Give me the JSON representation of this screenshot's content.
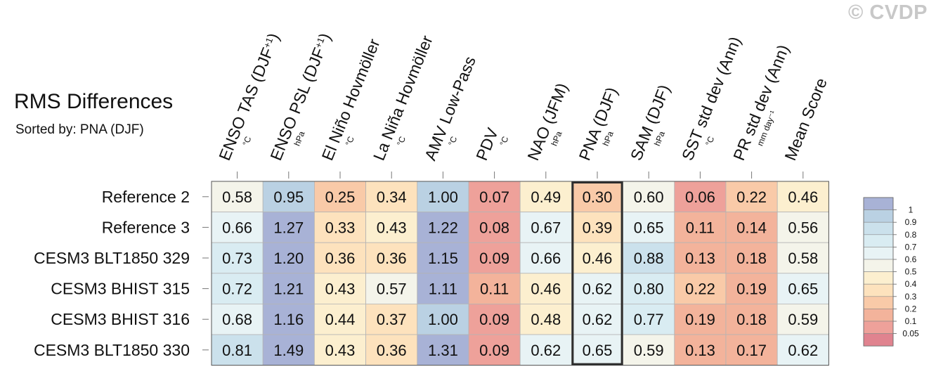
{
  "watermark": "© CVDP",
  "chart_data": {
    "type": "heatmap",
    "title": "RMS Differences",
    "subtitle": "Sorted by: PNA (DJF)",
    "columns": [
      {
        "label": "ENSO TAS (DJF",
        "sup": "+1",
        "after": ")",
        "unit": "°C"
      },
      {
        "label": "ENSO PSL (DJF",
        "sup": "+1",
        "after": ")",
        "unit": "hPa"
      },
      {
        "label": "El Niño Hovmöller",
        "sup": "",
        "after": "",
        "unit": "°C"
      },
      {
        "label": "La Niña Hovmöller",
        "sup": "",
        "after": "",
        "unit": "°C"
      },
      {
        "label": "AMV Low-Pass",
        "sup": "",
        "after": "",
        "unit": "°C"
      },
      {
        "label": "PDV",
        "sup": "",
        "after": "",
        "unit": "°C"
      },
      {
        "label": "NAO (JFM)",
        "sup": "",
        "after": "",
        "unit": "hPa"
      },
      {
        "label": "PNA (DJF)",
        "sup": "",
        "after": "",
        "unit": "hPa"
      },
      {
        "label": "SAM (DJF)",
        "sup": "",
        "after": "",
        "unit": "hPa"
      },
      {
        "label": "SST std dev (Ann)",
        "sup": "",
        "after": "",
        "unit": "°C"
      },
      {
        "label": "PR std dev (Ann)",
        "sup": "",
        "after": "",
        "unit": "mm day⁻¹"
      },
      {
        "label": "Mean Score",
        "sup": "",
        "after": "",
        "unit": ""
      }
    ],
    "rows": [
      "Reference 2",
      "Reference 3",
      "CESM3 BLT1850 329",
      "CESM3 BHIST 315",
      "CESM3 BHIST 316",
      "CESM3 BLT1850 330"
    ],
    "values": [
      [
        0.58,
        0.95,
        0.25,
        0.34,
        1.0,
        0.07,
        0.49,
        0.3,
        0.6,
        0.06,
        0.22,
        0.46
      ],
      [
        0.66,
        1.27,
        0.33,
        0.43,
        1.22,
        0.08,
        0.67,
        0.39,
        0.65,
        0.11,
        0.14,
        0.56
      ],
      [
        0.73,
        1.2,
        0.36,
        0.36,
        1.15,
        0.09,
        0.66,
        0.46,
        0.88,
        0.13,
        0.18,
        0.58
      ],
      [
        0.72,
        1.21,
        0.43,
        0.57,
        1.11,
        0.11,
        0.46,
        0.62,
        0.8,
        0.22,
        0.19,
        0.65
      ],
      [
        0.68,
        1.16,
        0.44,
        0.37,
        1.0,
        0.09,
        0.48,
        0.62,
        0.77,
        0.19,
        0.18,
        0.59
      ],
      [
        0.81,
        1.49,
        0.43,
        0.36,
        1.31,
        0.09,
        0.62,
        0.65,
        0.59,
        0.13,
        0.17,
        0.62
      ]
    ],
    "sorted_column": "PNA (DJF)",
    "colorbar": {
      "tick_labels": [
        "1",
        "0.9",
        "0.8",
        "0.7",
        "0.6",
        "0.5",
        "0.4",
        "0.3",
        "0.2",
        "0.1",
        "0.05"
      ],
      "bin_colors": [
        "#a8b2d6",
        "#bad1e3",
        "#cbe1ec",
        "#d9ecf2",
        "#e8f3f5",
        "#f4f4ea",
        "#fcefcf",
        "#fde2bd",
        "#f9caa8",
        "#f3b39b",
        "#eea19a",
        "#e0838f"
      ]
    }
  }
}
